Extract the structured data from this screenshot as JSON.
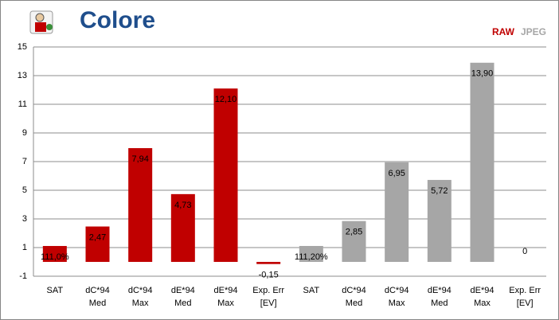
{
  "chart_data": {
    "type": "bar",
    "title": "Colore",
    "categories": [
      [
        "SAT"
      ],
      [
        "dC*94",
        "Med"
      ],
      [
        "dC*94",
        "Max"
      ],
      [
        "dE*94",
        "Med"
      ],
      [
        "dE*94",
        "Max"
      ],
      [
        "Exp. Err",
        "[EV]"
      ],
      [
        "SAT"
      ],
      [
        "dC*94",
        "Med"
      ],
      [
        "dC*94",
        "Max"
      ],
      [
        "dE*94",
        "Med"
      ],
      [
        "dE*94",
        "Max"
      ],
      [
        "Exp. Err",
        "[EV]"
      ]
    ],
    "series": [
      {
        "name": "RAW",
        "color": "#c00000",
        "values": [
          1.11,
          2.47,
          7.94,
          4.73,
          12.1,
          -0.15,
          null,
          null,
          null,
          null,
          null,
          null
        ],
        "value_labels": [
          "111,0%",
          "2,47",
          "7,94",
          "4,73",
          "12,10",
          "-0,15",
          null,
          null,
          null,
          null,
          null,
          null
        ]
      },
      {
        "name": "JPEG",
        "color": "#a6a6a6",
        "values": [
          null,
          null,
          null,
          null,
          null,
          null,
          1.112,
          2.85,
          6.95,
          5.72,
          13.9,
          0
        ],
        "value_labels": [
          null,
          null,
          null,
          null,
          null,
          null,
          "111,20%",
          "2,85",
          "6,95",
          "5,72",
          "13,90",
          "0"
        ]
      }
    ],
    "ylim": [
      -1,
      15
    ],
    "yticks": [
      -1,
      1,
      3,
      5,
      7,
      9,
      11,
      13,
      15
    ],
    "grid": true,
    "legend": "top-right"
  }
}
